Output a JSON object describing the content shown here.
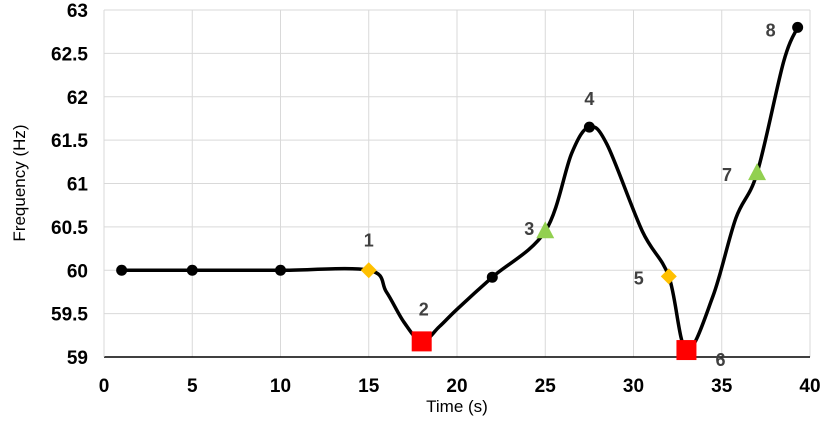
{
  "chart_data": {
    "type": "line",
    "title": "",
    "xlabel": "Time (s)",
    "ylabel": "Frequency (Hz)",
    "xlim": [
      0,
      40
    ],
    "ylim": [
      59,
      63
    ],
    "x_ticks": [
      0,
      5,
      10,
      15,
      20,
      25,
      30,
      35,
      40
    ],
    "y_ticks": [
      59,
      59.5,
      60,
      60.5,
      61,
      61.5,
      62,
      62.5,
      63
    ],
    "grid": true,
    "legend": "none",
    "curve": [
      {
        "x": 1,
        "y": 60.0
      },
      {
        "x": 5,
        "y": 60.0
      },
      {
        "x": 10,
        "y": 60.0
      },
      {
        "x": 15,
        "y": 60.0
      },
      {
        "x": 16,
        "y": 59.75
      },
      {
        "x": 17,
        "y": 59.4
      },
      {
        "x": 18,
        "y": 59.18
      },
      {
        "x": 19,
        "y": 59.35
      },
      {
        "x": 20,
        "y": 59.55
      },
      {
        "x": 22,
        "y": 59.92
      },
      {
        "x": 25,
        "y": 60.45
      },
      {
        "x": 26.5,
        "y": 61.35
      },
      {
        "x": 27.5,
        "y": 61.65
      },
      {
        "x": 28.5,
        "y": 61.45
      },
      {
        "x": 30.5,
        "y": 60.45
      },
      {
        "x": 32,
        "y": 59.93
      },
      {
        "x": 33,
        "y": 59.08
      },
      {
        "x": 34.5,
        "y": 59.7
      },
      {
        "x": 35.8,
        "y": 60.6
      },
      {
        "x": 37,
        "y": 61.12
      },
      {
        "x": 38.5,
        "y": 62.4
      },
      {
        "x": 39.3,
        "y": 62.8
      }
    ],
    "markers": [
      {
        "x": 1,
        "y": 60.0,
        "shape": "circle",
        "color": "#000000",
        "label": ""
      },
      {
        "x": 5,
        "y": 60.0,
        "shape": "circle",
        "color": "#000000",
        "label": ""
      },
      {
        "x": 10,
        "y": 60.0,
        "shape": "circle",
        "color": "#000000",
        "label": ""
      },
      {
        "x": 15,
        "y": 60.0,
        "shape": "diamond",
        "color": "#FFC000",
        "label": "1"
      },
      {
        "x": 18,
        "y": 59.18,
        "shape": "square",
        "color": "#FF0000",
        "label": "2"
      },
      {
        "x": 22,
        "y": 59.92,
        "shape": "circle",
        "color": "#000000",
        "label": ""
      },
      {
        "x": 25,
        "y": 60.45,
        "shape": "triangle",
        "color": "#92D050",
        "label": "3"
      },
      {
        "x": 27.5,
        "y": 61.65,
        "shape": "circle",
        "color": "#000000",
        "label": "4"
      },
      {
        "x": 32,
        "y": 59.93,
        "shape": "diamond",
        "color": "#FFC000",
        "label": "5"
      },
      {
        "x": 33,
        "y": 59.08,
        "shape": "square",
        "color": "#FF0000",
        "label": "6"
      },
      {
        "x": 37,
        "y": 61.12,
        "shape": "triangle",
        "color": "#92D050",
        "label": "7"
      },
      {
        "x": 39.3,
        "y": 62.8,
        "shape": "circle",
        "color": "#000000",
        "label": "8"
      }
    ]
  }
}
